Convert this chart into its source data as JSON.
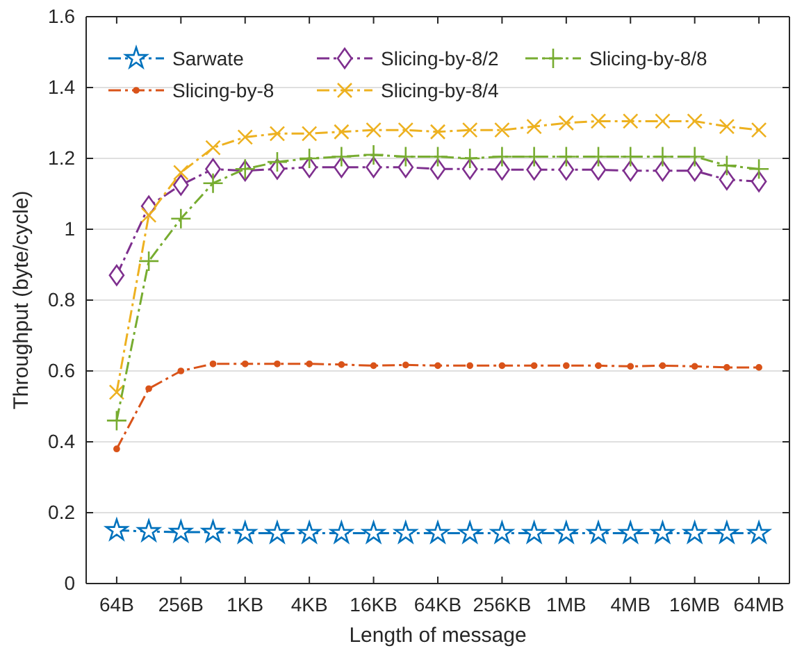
{
  "chart_data": {
    "type": "line",
    "xlabel": "Length of message",
    "ylabel": "Throughput (byte/cycle)",
    "categories": [
      "64B",
      null,
      "256B",
      null,
      "1KB",
      null,
      "4KB",
      null,
      "16KB",
      null,
      "64KB",
      null,
      "256KB",
      null,
      "1MB",
      null,
      "4MB",
      null,
      "16MB",
      null,
      "64MB"
    ],
    "ylim": [
      0,
      1.6
    ],
    "yticks": [
      0,
      0.2,
      0.4,
      0.6,
      0.8,
      1,
      1.2,
      1.4,
      1.6
    ],
    "grid": "y",
    "legend": "top",
    "series": [
      {
        "name": "Sarwate",
        "color": "#0072bd",
        "marker": "star",
        "line_style": "dashed",
        "values": [
          0.15,
          0.147,
          0.145,
          0.145,
          0.142,
          0.142,
          0.142,
          0.142,
          0.142,
          0.142,
          0.142,
          0.142,
          0.142,
          0.142,
          0.142,
          0.142,
          0.142,
          0.142,
          0.142,
          0.142,
          0.142
        ]
      },
      {
        "name": "Slicing-by-8",
        "color": "#d95319",
        "marker": "circle",
        "line_style": "dashed",
        "values": [
          0.38,
          0.55,
          0.6,
          0.62,
          0.62,
          0.62,
          0.62,
          0.618,
          0.615,
          0.617,
          0.615,
          0.615,
          0.615,
          0.615,
          0.615,
          0.615,
          0.613,
          0.615,
          0.613,
          0.61,
          0.61
        ]
      },
      {
        "name": "Slicing-by-8/2",
        "color": "#7e2f8e",
        "marker": "diamond",
        "line_style": "dashed",
        "values": [
          0.87,
          1.065,
          1.125,
          1.17,
          1.165,
          1.17,
          1.175,
          1.175,
          1.175,
          1.175,
          1.17,
          1.17,
          1.168,
          1.168,
          1.168,
          1.168,
          1.165,
          1.165,
          1.165,
          1.14,
          1.135
        ]
      },
      {
        "name": "Slicing-by-8/4",
        "color": "#edb120",
        "marker": "cross",
        "line_style": "dashed",
        "values": [
          0.54,
          1.04,
          1.16,
          1.23,
          1.26,
          1.27,
          1.27,
          1.275,
          1.28,
          1.28,
          1.275,
          1.28,
          1.28,
          1.29,
          1.3,
          1.305,
          1.305,
          1.305,
          1.305,
          1.29,
          1.28
        ]
      },
      {
        "name": "Slicing-by-8/8",
        "color": "#77ac30",
        "marker": "plus",
        "line_style": "dashed",
        "values": [
          0.46,
          0.91,
          1.03,
          1.13,
          1.17,
          1.19,
          1.2,
          1.205,
          1.21,
          1.205,
          1.205,
          1.2,
          1.205,
          1.205,
          1.205,
          1.205,
          1.205,
          1.205,
          1.205,
          1.18,
          1.17
        ]
      }
    ]
  }
}
